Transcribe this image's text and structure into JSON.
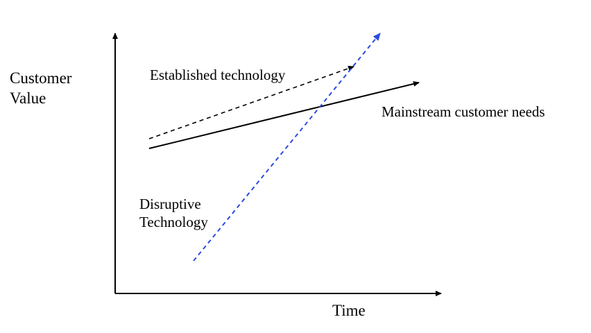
{
  "labels": {
    "y_axis_line1": "Customer",
    "y_axis_line2": "Value",
    "x_axis": "Time",
    "established": "Established technology",
    "mainstream": "Mainstream customer needs",
    "disruptive_line1": "Disruptive",
    "disruptive_line2": "Technology"
  },
  "colors": {
    "axis": "#000000",
    "established_line": "#000000",
    "mainstream_line": "#000000",
    "disruptive_line": "#2a4be0"
  },
  "line_styles": {
    "established": "dashed",
    "mainstream": "solid",
    "disruptive": "dashed"
  }
}
